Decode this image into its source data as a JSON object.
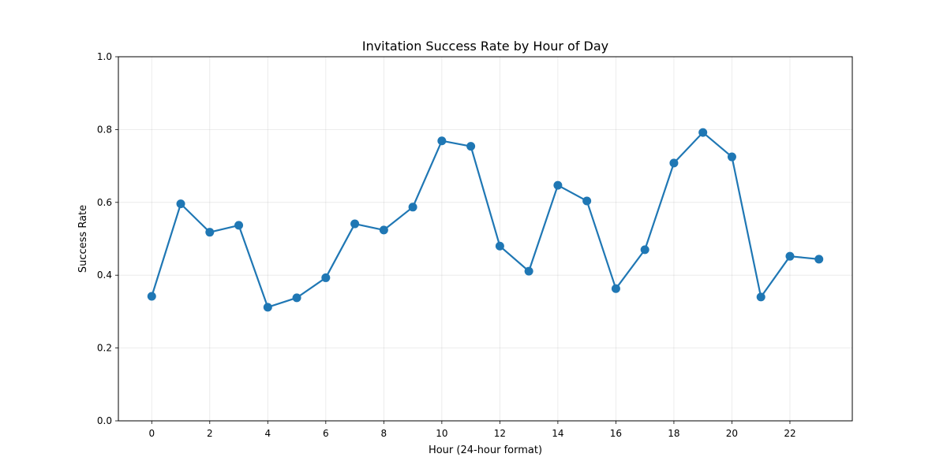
{
  "chart_data": {
    "type": "line",
    "title": "Invitation Success Rate by Hour of Day",
    "xlabel": "Hour (24-hour format)",
    "ylabel": "Success Rate",
    "x": [
      0,
      1,
      2,
      3,
      4,
      5,
      6,
      7,
      8,
      9,
      10,
      11,
      12,
      13,
      14,
      15,
      16,
      17,
      18,
      19,
      20,
      21,
      22,
      23
    ],
    "xlim": [
      -1.15,
      24.15
    ],
    "ylim": [
      0.0,
      1.0
    ],
    "x_ticks": [
      0,
      2,
      4,
      6,
      8,
      10,
      12,
      14,
      16,
      18,
      20,
      22
    ],
    "x_tick_labels": [
      "0",
      "2",
      "4",
      "6",
      "8",
      "10",
      "12",
      "14",
      "16",
      "18",
      "20",
      "22"
    ],
    "y_ticks": [
      0.0,
      0.2,
      0.4,
      0.6,
      0.8,
      1.0
    ],
    "y_tick_labels": [
      "0.0",
      "0.2",
      "0.4",
      "0.6",
      "0.8",
      "1.0"
    ],
    "grid": true,
    "series": [
      {
        "color": "#1f77b4",
        "marker": "circle",
        "values": [
          0.342,
          0.596,
          0.518,
          0.537,
          0.312,
          0.338,
          0.393,
          0.541,
          0.524,
          0.587,
          0.769,
          0.754,
          0.48,
          0.411,
          0.647,
          0.604,
          0.363,
          0.47,
          0.708,
          0.792,
          0.725,
          0.34,
          0.452,
          0.444
        ]
      }
    ]
  }
}
